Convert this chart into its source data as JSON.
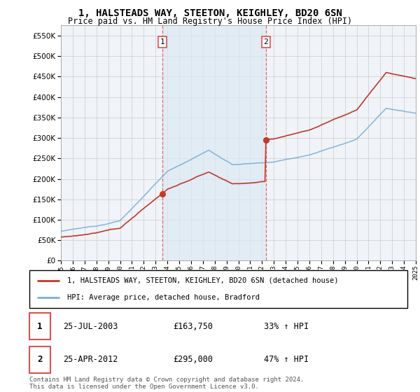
{
  "title": "1, HALSTEADS WAY, STEETON, KEIGHLEY, BD20 6SN",
  "subtitle": "Price paid vs. HM Land Registry's House Price Index (HPI)",
  "legend_line1": "1, HALSTEADS WAY, STEETON, KEIGHLEY, BD20 6SN (detached house)",
  "legend_line2": "HPI: Average price, detached house, Bradford",
  "transaction1_date": "25-JUL-2003",
  "transaction1_price": "£163,750",
  "transaction1_hpi": "33% ↑ HPI",
  "transaction2_date": "25-APR-2012",
  "transaction2_price": "£295,000",
  "transaction2_hpi": "47% ↑ HPI",
  "footnote": "Contains HM Land Registry data © Crown copyright and database right 2024.\nThis data is licensed under the Open Government Licence v3.0.",
  "xmin": 1995,
  "xmax": 2025,
  "ymin": 0,
  "ymax": 575000,
  "yticks": [
    0,
    50000,
    100000,
    150000,
    200000,
    250000,
    300000,
    350000,
    400000,
    450000,
    500000,
    550000
  ],
  "transaction1_x": 2003.56,
  "transaction1_y": 163750,
  "transaction2_x": 2012.32,
  "transaction2_y": 295000,
  "vline1_x": 2003.56,
  "vline2_x": 2012.32,
  "hpi_color": "#7bafd4",
  "price_color": "#c0392b",
  "vline_color": "#e05050",
  "shade_color": "#dce9f5",
  "background_color": "#f0f4f8",
  "plot_bg_color": "#ffffff",
  "grid_color": "#cccccc"
}
